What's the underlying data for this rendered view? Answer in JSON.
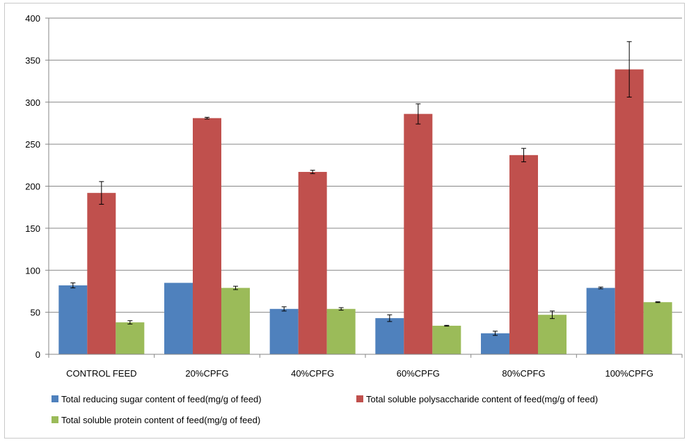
{
  "chart_data": {
    "type": "bar",
    "title": "",
    "xlabel": "",
    "ylabel": "",
    "ylim": [
      0,
      400
    ],
    "yticks": [
      0,
      50,
      100,
      150,
      200,
      250,
      300,
      350,
      400
    ],
    "grid": true,
    "legend_position": "bottom",
    "categories": [
      "CONTROL FEED",
      "20%CPFG",
      "40%CPFG",
      "60%CPFG",
      "80%CPFG",
      "100%CPFG"
    ],
    "series": [
      {
        "name": "Total reducing sugar content of feed(mg/g of feed)",
        "color": "#4F81BD",
        "values": [
          82,
          85,
          54,
          43,
          25,
          79
        ],
        "errors": [
          3,
          0,
          2.5,
          4,
          2.5,
          1
        ]
      },
      {
        "name": "Total soluble polysaccharide content of feed(mg/g of feed)",
        "color": "#C0504D",
        "values": [
          192,
          281,
          217,
          286,
          237,
          339
        ],
        "errors": [
          13.5,
          1,
          2,
          12,
          8,
          33
        ]
      },
      {
        "name": "Total soluble protein content of feed(mg/g of feed)",
        "color": "#9BBB59",
        "values": [
          38,
          79,
          54,
          34,
          47,
          62
        ],
        "errors": [
          2,
          2,
          1.5,
          0.5,
          4.5,
          0.5
        ]
      }
    ]
  }
}
